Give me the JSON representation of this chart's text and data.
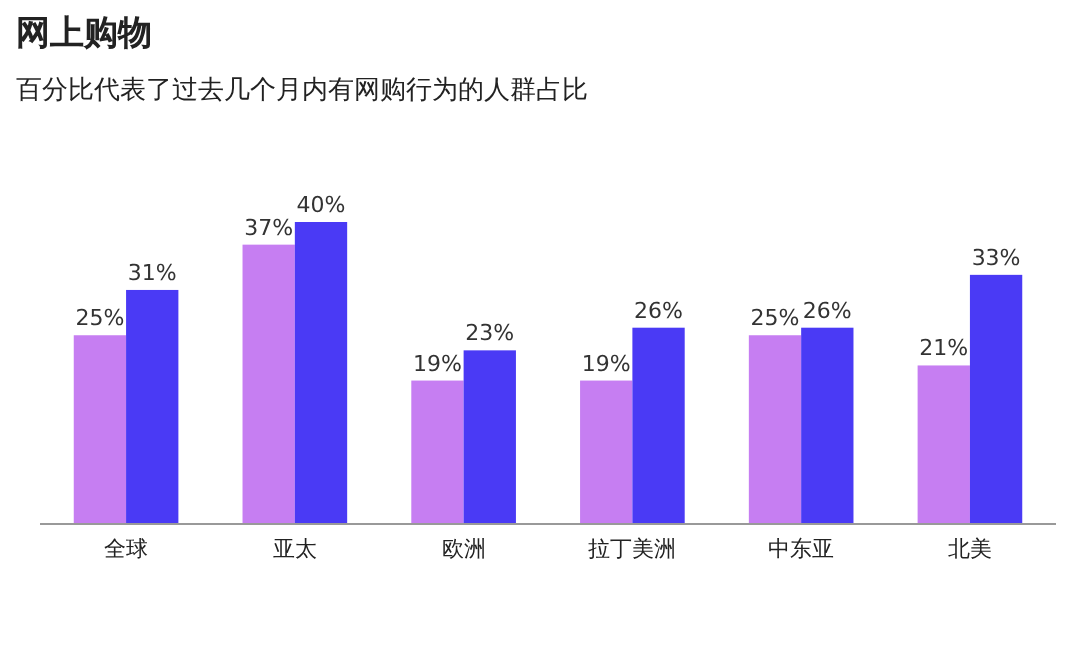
{
  "chart_data": {
    "type": "bar",
    "title": "网上购物",
    "subtitle": "百分比代表了过去几个月内有网购行为的人群占比",
    "categories": [
      "全球",
      "亚太",
      "欧洲",
      "拉丁美洲",
      "中东亚",
      "北美"
    ],
    "series": [
      {
        "color": "#c67ef2",
        "values": [
          25,
          37,
          19,
          19,
          25,
          21
        ],
        "value_labels": [
          "25%",
          "37%",
          "19%",
          "19%",
          "25%",
          "21%"
        ]
      },
      {
        "color": "#4a3af5",
        "values": [
          31,
          40,
          23,
          26,
          26,
          33
        ],
        "value_labels": [
          "31%",
          "40%",
          "23%",
          "26%",
          "26%",
          "33%"
        ]
      }
    ]
  }
}
